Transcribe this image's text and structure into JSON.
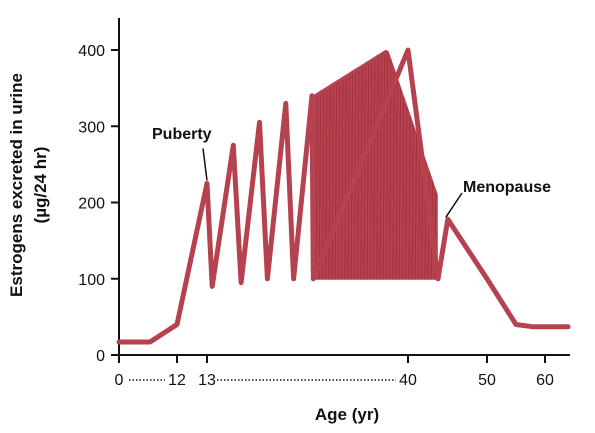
{
  "chart_data": {
    "type": "line",
    "title": "",
    "xlabel": "Age (yr)",
    "ylabel_line1": "Estrogens excreted in urine",
    "ylabel_line2": "(µg/24 hr)",
    "ylim": [
      0,
      400
    ],
    "y_ticks": [
      "0",
      "100",
      "200",
      "300",
      "400"
    ],
    "x_ticks": [
      {
        "age": 0,
        "label": "0"
      },
      {
        "age": 12,
        "label": "12"
      },
      {
        "age": 13,
        "label": "13"
      },
      {
        "age": 40,
        "label": "40"
      },
      {
        "age": 50,
        "label": "50"
      },
      {
        "age": 60,
        "label": "60"
      }
    ],
    "axis_breaks": [
      [
        0,
        12
      ],
      [
        13,
        40
      ]
    ],
    "grid": false,
    "series_color": "#b5424e",
    "series": [
      {
        "name": "",
        "points": [
          {
            "age": 0,
            "value": 17
          },
          {
            "age": 6,
            "value": 17
          },
          {
            "age": 12,
            "value": 40
          },
          {
            "age": 13,
            "value": 225
          },
          {
            "age": 13.2,
            "value": 90
          },
          {
            "age": 14,
            "value": 275
          },
          {
            "age": 14.3,
            "value": 95
          },
          {
            "age": 15,
            "value": 305
          },
          {
            "age": 15.3,
            "value": 100
          },
          {
            "age": 16,
            "value": 330
          },
          {
            "age": 16.3,
            "value": 100
          },
          {
            "age": 17,
            "value": 340
          },
          {
            "age": 17.3,
            "value": 100
          },
          {
            "age": 40,
            "value": 400
          },
          {
            "age": 45,
            "value": 100
          },
          {
            "age": 46,
            "value": 178
          },
          {
            "age": 50,
            "value": 100
          },
          {
            "age": 55,
            "value": 40
          },
          {
            "age": 58,
            "value": 37
          },
          {
            "age": 64,
            "value": 37
          }
        ],
        "cyclic_band": {
          "from_age": 17.5,
          "to_age": 44.8,
          "min": 100,
          "peak": 400,
          "peak_age": 35
        }
      }
    ],
    "annotations": [
      {
        "text": "Puberty",
        "age": 13,
        "value": 225
      },
      {
        "text": "Menopause",
        "age": 46,
        "value": 178
      }
    ]
  }
}
